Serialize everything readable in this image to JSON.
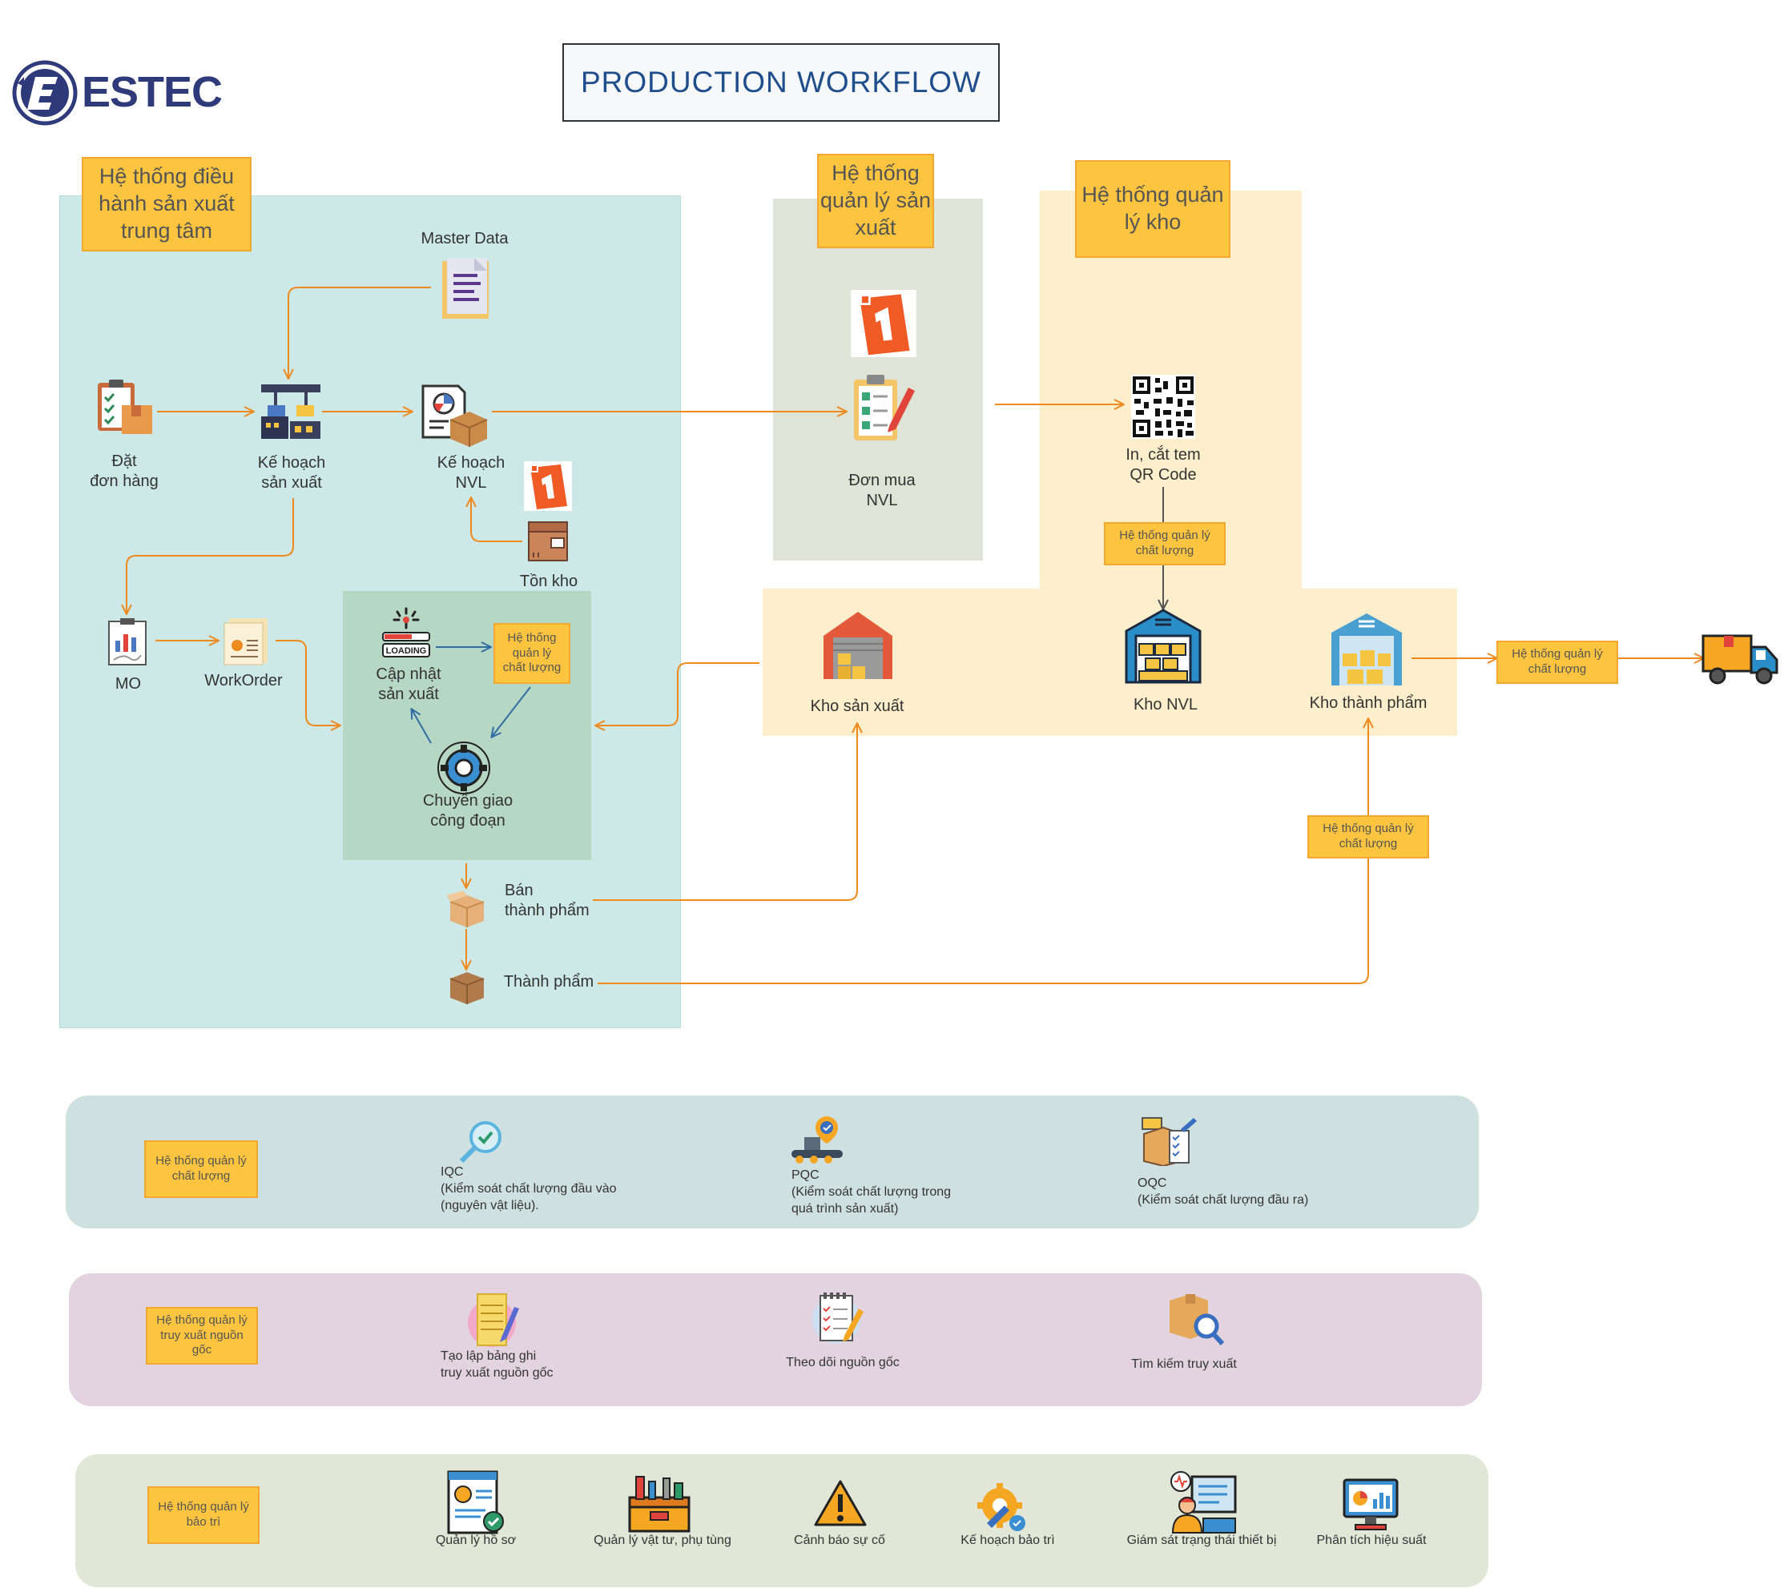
{
  "logo": {
    "text": "ESTEC"
  },
  "title": "PRODUCTION WORKFLOW",
  "zones": {
    "central": {
      "label": "Hệ thống điều hành sản xuất trung tâm"
    },
    "production": {
      "label": "Hệ thống quản lý sản xuất"
    },
    "warehouse": {
      "label": "Hệ thống quản lý kho"
    }
  },
  "nodes": {
    "master_data": "Master Data",
    "order": "Đặt\nđơn hàng",
    "production_plan": "Kế hoạch\nsản xuất",
    "material_plan": "Kế hoạch\nNVL",
    "inventory": "Tồn kho",
    "mo": "MO",
    "workorder": "WorkOrder",
    "update_production": "Cập nhật\nsản xuất",
    "loading": "LOADING",
    "stage_transfer": "Chuyển giao\ncông đoạn",
    "semi_finished": "Bán\nthành phẩm",
    "finished": "Thành phẩm",
    "purchase_order": "Đơn mua\nNVL",
    "qr_print": "In, cắt tem\nQR Code",
    "wh_production": "Kho sản xuất",
    "wh_material": "Kho NVL",
    "wh_finished": "Kho thành phẩm"
  },
  "qc_tags": {
    "in_loop": "Hệ thống\nquản lý\nchất lượng",
    "qr": "Hệ thống quản lý\nchất lượng",
    "shipping": "Hệ thống quản lý\nchất lượng",
    "finished": "Hệ thống quản lý\nchất lượng"
  },
  "bands": {
    "quality": {
      "label": "Hệ thống quản lý\nchất lượng",
      "color": "#cfe0e0",
      "items": [
        {
          "icon": "magnifier-check-icon",
          "text": "IQC\n(Kiểm soát chất lượng đầu vào\n(nguyên vật liệu)."
        },
        {
          "icon": "conveyor-check-icon",
          "text": "PQC\n(Kiểm soát chất lượng trong\nquá trình sản xuất)"
        },
        {
          "icon": "qc-box-icon",
          "text": "OQC\n(Kiểm soát chất lượng đầu ra)"
        }
      ]
    },
    "traceability": {
      "label": "Hệ thống quản lý\ntruy xuất nguồn\ngốc",
      "color": "#e3d3df",
      "items": [
        {
          "icon": "notepad-pencil-icon",
          "text": "Tạo lập bảng ghi\ntruy xuất nguồn gốc"
        },
        {
          "icon": "checklist-pencil-icon",
          "text": "Theo dõi nguồn gốc"
        },
        {
          "icon": "box-search-icon",
          "text": "Tìm kiếm truy xuất"
        }
      ]
    },
    "maintenance": {
      "label": "Hệ thống quản lý\nbảo trì",
      "color": "#e2e6d6",
      "items": [
        {
          "icon": "profile-doc-icon",
          "text": "Quản lý hồ sơ"
        },
        {
          "icon": "toolbox-icon",
          "text": "Quản lý vật tư, phụ tùng"
        },
        {
          "icon": "warning-icon",
          "text": "Cảnh báo sự cố"
        },
        {
          "icon": "gear-wrench-icon",
          "text": "Kế hoạch bảo trì"
        },
        {
          "icon": "monitor-worker-icon",
          "text": "Giám sát trạng thái thiết bị"
        },
        {
          "icon": "analytics-monitor-icon",
          "text": "Phân tích hiệu suất"
        }
      ]
    }
  },
  "colors": {
    "arrow": "#ef8a1e",
    "blue_arrow": "#2f6da3",
    "central_zone": "#cce9e7",
    "production_zone": "#dfe4d6",
    "warehouse_zone": "#fdefcc",
    "inner_zone": "#b6d7c4",
    "tag": "#fdc43f"
  }
}
